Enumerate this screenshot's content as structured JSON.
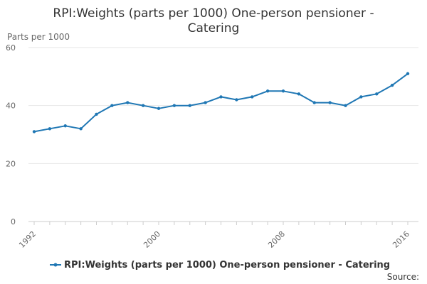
{
  "chart_data": {
    "type": "line",
    "title_lines": [
      "RPI:Weights (parts per 1000) One-person pensioner -",
      "Catering"
    ],
    "ylabel": "Parts per 1000",
    "xlabel": "",
    "ylim": [
      0,
      60
    ],
    "y_ticks": [
      "0",
      "20",
      "40",
      "60"
    ],
    "x_ticks": [
      "1992",
      "2000",
      "2008",
      "2016"
    ],
    "grid": "horizontal",
    "legend_position": "bottom",
    "series": [
      {
        "name": "RPI:Weights (parts per 1000) One-person pensioner - Catering",
        "color": "#1f77b4",
        "x": [
          1992,
          1993,
          1994,
          1995,
          1996,
          1997,
          1998,
          1999,
          2000,
          2001,
          2002,
          2003,
          2004,
          2005,
          2006,
          2007,
          2008,
          2009,
          2010,
          2011,
          2012,
          2013,
          2014,
          2015,
          2016
        ],
        "values": [
          31,
          32,
          33,
          32,
          37,
          40,
          41,
          40,
          39,
          40,
          40,
          41,
          43,
          42,
          43,
          45,
          45,
          44,
          41,
          41,
          40,
          43,
          44,
          47,
          51
        ]
      }
    ]
  },
  "source_label": "Source:"
}
